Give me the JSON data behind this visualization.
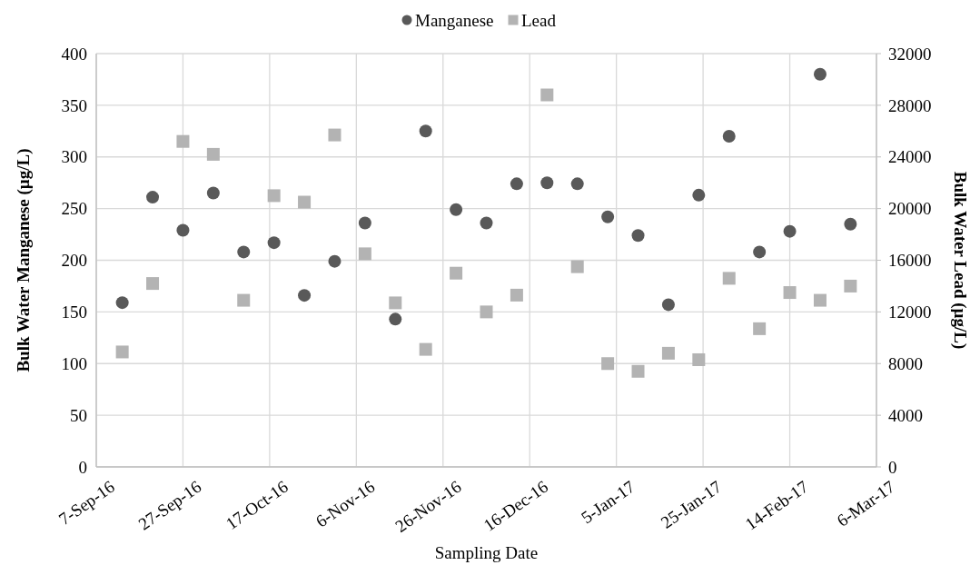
{
  "chart_data": {
    "type": "scatter",
    "xlabel": "Sampling Date",
    "ylabel": "Bulk Water Manganese (µg/L)",
    "y2label": "Bulk Water Lead (µg/L)",
    "x": [
      "2016-09-13",
      "2016-09-20",
      "2016-09-27",
      "2016-10-04",
      "2016-10-11",
      "2016-10-18",
      "2016-10-25",
      "2016-11-01",
      "2016-11-08",
      "2016-11-15",
      "2016-11-22",
      "2016-11-29",
      "2016-12-06",
      "2016-12-13",
      "2016-12-20",
      "2016-12-27",
      "2017-01-03",
      "2017-01-10",
      "2017-01-17",
      "2017-01-24",
      "2017-01-31",
      "2017-02-07",
      "2017-02-14",
      "2017-02-21",
      "2017-02-28"
    ],
    "series": [
      {
        "name": "Manganese",
        "color": "#595959",
        "marker": "circle",
        "values": [
          159,
          261,
          229,
          265,
          208,
          217,
          166,
          199,
          236,
          143,
          325,
          249,
          236,
          274,
          275,
          274,
          242,
          224,
          157,
          263,
          320,
          208,
          228,
          380,
          235
        ]
      },
      {
        "name": "Lead",
        "color": "#b3b3b3",
        "marker": "square",
        "axis": "y2",
        "values": [
          8900,
          14200,
          25200,
          24200,
          12900,
          21000,
          20500,
          25700,
          16500,
          12700,
          9100,
          15000,
          12000,
          13300,
          28800,
          15500,
          8000,
          7400,
          8800,
          8300,
          14600,
          10700,
          13500,
          12900,
          14000
        ]
      }
    ],
    "xlim": [
      "2016-09-07",
      "2017-03-06"
    ],
    "xticks": [
      {
        "value": "2016-09-07",
        "label": "7-Sep-16"
      },
      {
        "value": "2016-09-27",
        "label": "27-Sep-16"
      },
      {
        "value": "2016-10-17",
        "label": "17-Oct-16"
      },
      {
        "value": "2016-11-06",
        "label": "6-Nov-16"
      },
      {
        "value": "2016-11-26",
        "label": "26-Nov-16"
      },
      {
        "value": "2016-12-16",
        "label": "16-Dec-16"
      },
      {
        "value": "2017-01-05",
        "label": "5-Jan-17"
      },
      {
        "value": "2017-01-25",
        "label": "25-Jan-17"
      },
      {
        "value": "2017-02-14",
        "label": "14-Feb-17"
      },
      {
        "value": "2017-03-06",
        "label": "6-Mar-17"
      }
    ],
    "ylim": [
      0,
      400
    ],
    "yticks": [
      0,
      50,
      100,
      150,
      200,
      250,
      300,
      350,
      400
    ],
    "y2lim": [
      0,
      32000
    ],
    "y2ticks": [
      0,
      4000,
      8000,
      12000,
      16000,
      20000,
      24000,
      28000,
      32000
    ],
    "grid": true,
    "legend": "top"
  }
}
